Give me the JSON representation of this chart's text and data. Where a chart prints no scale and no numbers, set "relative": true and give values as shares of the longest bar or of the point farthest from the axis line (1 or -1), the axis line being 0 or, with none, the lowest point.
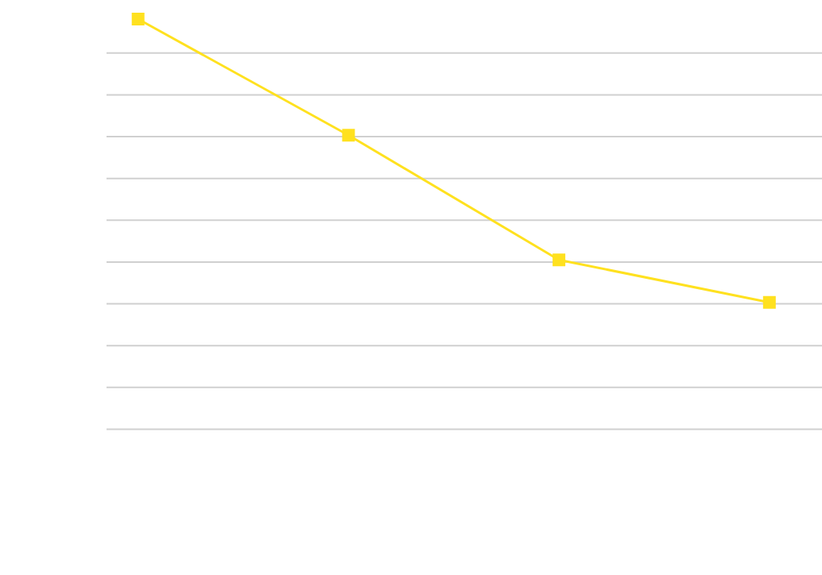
{
  "chart_data": {
    "type": "line",
    "relative": true,
    "categories": [
      null,
      null,
      null,
      null
    ],
    "series": [
      {
        "color": "#ffe11f",
        "values": [
          1,
          0.59,
          0.15,
          0
        ]
      }
    ],
    "grid": "y",
    "marker": "square",
    "line_style": "solid"
  }
}
